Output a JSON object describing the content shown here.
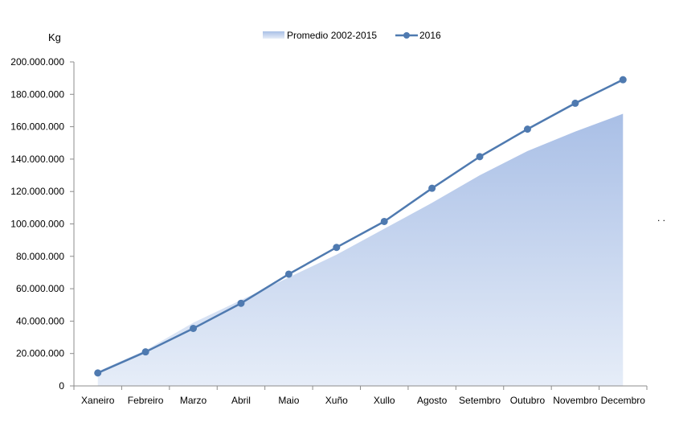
{
  "chart_data": {
    "type": "area",
    "ylabel": "Kg",
    "ylim": [
      0,
      200000000
    ],
    "yticks": [
      0,
      20000000,
      40000000,
      60000000,
      80000000,
      100000000,
      120000000,
      140000000,
      160000000,
      180000000,
      200000000
    ],
    "ytick_labels": [
      "0",
      "20.000.000",
      "40.000.000",
      "60.000.000",
      "80.000.000",
      "100.000.000",
      "120.000.000",
      "140.000.000",
      "160.000.000",
      "180.000.000",
      "200.000.000"
    ],
    "categories": [
      "Xaneiro",
      "Febreiro",
      "Marzo",
      "Abril",
      "Maio",
      "Xuño",
      "Xullo",
      "Agosto",
      "Setembro",
      "Outubro",
      "Novembro",
      "Decembro"
    ],
    "legend_position": "top-center",
    "series": [
      {
        "name": "Promedio 2002-2015",
        "kind": "area",
        "color": "#b4c7e7",
        "values": [
          9000000,
          22000000,
          39000000,
          53000000,
          67000000,
          81000000,
          97000000,
          113000000,
          130000000,
          145000000,
          157000000,
          168000000
        ]
      },
      {
        "name": "2016",
        "kind": "line",
        "color": "#4f7ab0",
        "marker": "circle",
        "values": [
          8000000,
          21000000,
          35500000,
          51000000,
          69000000,
          85500000,
          101500000,
          122000000,
          141500000,
          158500000,
          174500000,
          189000000
        ]
      }
    ],
    "grid": false
  },
  "stray_mark": ". ."
}
